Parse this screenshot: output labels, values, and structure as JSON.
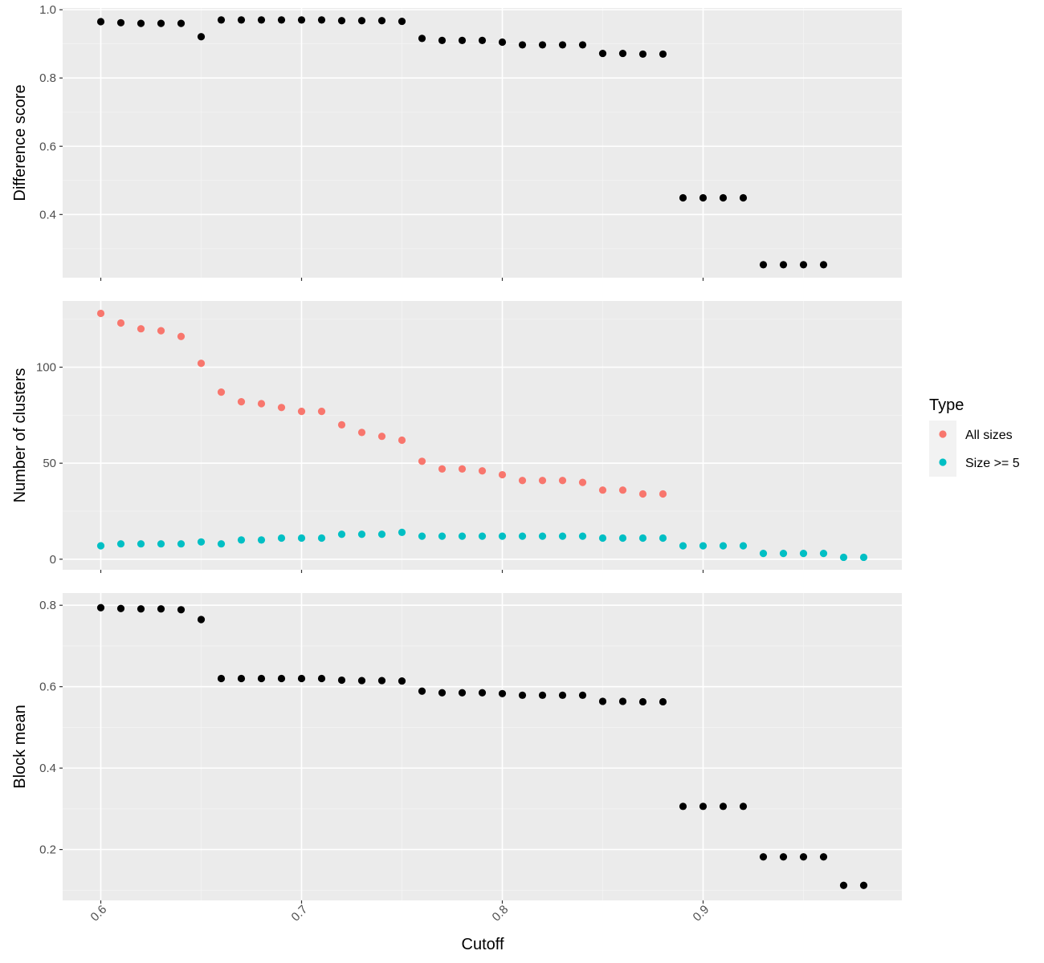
{
  "chart_data": {
    "type": "scatter",
    "xlabel": "Cutoff",
    "xlim": [
      0.581,
      0.999
    ],
    "x_ticks": [
      0.6,
      0.7,
      0.8,
      0.9
    ],
    "x_tick_labels": [
      "0.6",
      "0.7",
      "0.8",
      "0.9"
    ],
    "x": [
      0.6,
      0.61,
      0.62,
      0.63,
      0.64,
      0.65,
      0.66,
      0.67,
      0.68,
      0.69,
      0.7,
      0.71,
      0.72,
      0.73,
      0.74,
      0.75,
      0.76,
      0.77,
      0.78,
      0.79,
      0.8,
      0.81,
      0.82,
      0.83,
      0.84,
      0.85,
      0.86,
      0.87,
      0.88,
      0.89,
      0.9,
      0.91,
      0.92,
      0.93,
      0.94,
      0.95,
      0.96,
      0.97,
      0.98
    ],
    "grid": true,
    "background": "#ebebeb",
    "legend": {
      "title": "Type",
      "position": "right",
      "entries": [
        {
          "label": "All sizes",
          "color": "#f8766d"
        },
        {
          "label": "Size >= 5",
          "color": "#00bfc4"
        }
      ]
    },
    "panels": [
      {
        "ylabel": "Difference score",
        "ylim": [
          0.215,
          1.005
        ],
        "y_ticks": [
          0.4,
          0.6,
          0.8,
          1.0
        ],
        "y_tick_labels": [
          "0.4",
          "0.6",
          "0.8",
          "1.0"
        ],
        "series": [
          {
            "color": "#000000",
            "values": [
              0.965,
              0.962,
              0.96,
              0.96,
              0.96,
              0.921,
              0.97,
              0.97,
              0.97,
              0.97,
              0.97,
              0.97,
              0.968,
              0.968,
              0.968,
              0.966,
              0.916,
              0.91,
              0.91,
              0.91,
              0.905,
              0.897,
              0.897,
              0.897,
              0.897,
              0.872,
              0.872,
              0.87,
              0.87,
              0.449,
              0.449,
              0.449,
              0.449,
              0.253,
              0.253,
              0.253,
              0.253,
              null,
              null
            ]
          }
        ]
      },
      {
        "ylabel": "Number of clusters",
        "ylim": [
          -5.5,
          134.5
        ],
        "y_ticks": [
          0,
          50,
          100
        ],
        "y_tick_labels": [
          "0",
          "50",
          "100"
        ],
        "series": [
          {
            "name": "All sizes",
            "color": "#f8766d",
            "values": [
              128,
              123,
              120,
              119,
              116,
              102,
              87,
              82,
              81,
              79,
              77,
              77,
              70,
              66,
              64,
              62,
              51,
              47,
              47,
              46,
              44,
              41,
              41,
              41,
              40,
              36,
              36,
              34,
              34,
              null,
              null,
              null,
              null,
              null,
              null,
              null,
              null,
              null,
              null
            ]
          },
          {
            "name": "Size >= 5",
            "color": "#00bfc4",
            "values": [
              7,
              8,
              8,
              8,
              8,
              9,
              8,
              10,
              10,
              11,
              11,
              11,
              13,
              13,
              13,
              14,
              12,
              12,
              12,
              12,
              12,
              12,
              12,
              12,
              12,
              11,
              11,
              11,
              11,
              7,
              7,
              7,
              7,
              3,
              3,
              3,
              3,
              1,
              1
            ]
          }
        ]
      },
      {
        "ylabel": "Block mean",
        "ylim": [
          0.075,
          0.83
        ],
        "y_ticks": [
          0.2,
          0.4,
          0.6,
          0.8
        ],
        "y_tick_labels": [
          "0.2",
          "0.4",
          "0.6",
          "0.8"
        ],
        "series": [
          {
            "color": "#000000",
            "values": [
              0.794,
              0.792,
              0.791,
              0.791,
              0.789,
              0.765,
              0.62,
              0.62,
              0.62,
              0.62,
              0.62,
              0.62,
              0.616,
              0.615,
              0.615,
              0.614,
              0.589,
              0.585,
              0.585,
              0.585,
              0.583,
              0.579,
              0.579,
              0.579,
              0.579,
              0.564,
              0.564,
              0.563,
              0.563,
              0.306,
              0.306,
              0.306,
              0.306,
              0.182,
              0.182,
              0.182,
              0.182,
              0.112,
              0.112
            ]
          }
        ]
      }
    ]
  }
}
